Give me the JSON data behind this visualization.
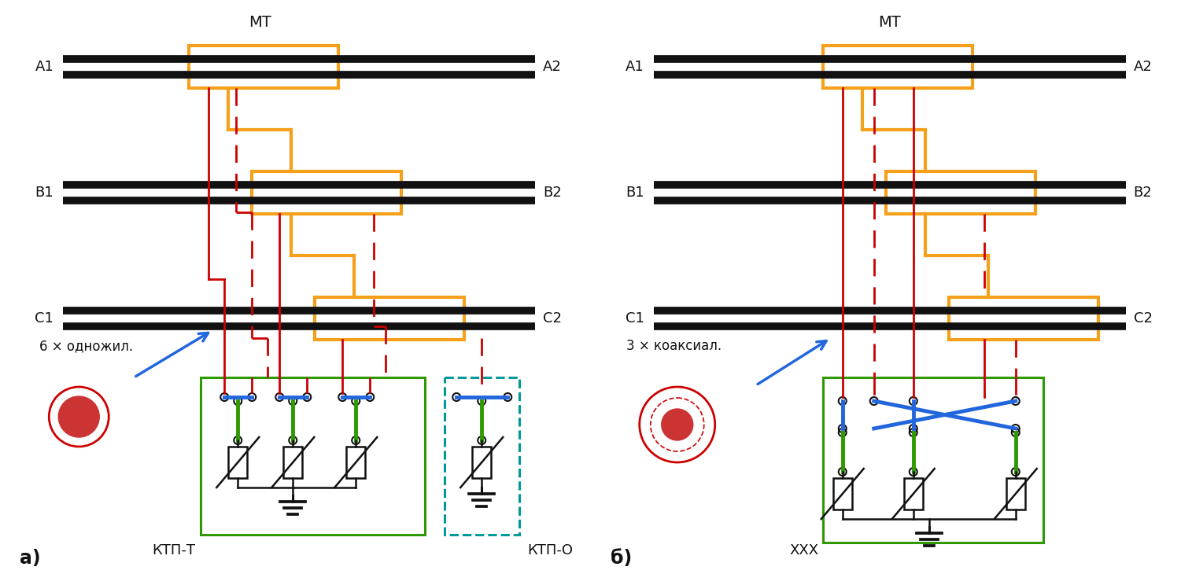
{
  "bg_color": "#ffffff",
  "orange": "#F5A01A",
  "red": "#CC0000",
  "green": "#2E9900",
  "blue": "#2266DD",
  "black": "#111111",
  "teal": "#009999",
  "label_MT": "МТ",
  "label_A1": "А1",
  "label_A2": "А2",
  "label_B1": "В1",
  "label_B2": "В2",
  "label_C1": "С1",
  "label_C2": "С2",
  "label_cable_a": "6 × одножил.",
  "label_cable_b": "3 × коаксиал.",
  "label_ktp_t": "КТП-Т",
  "label_ktp_o": "КТП-О",
  "label_xxx": "ХХХ",
  "label_a": "а)",
  "label_b": "б)"
}
